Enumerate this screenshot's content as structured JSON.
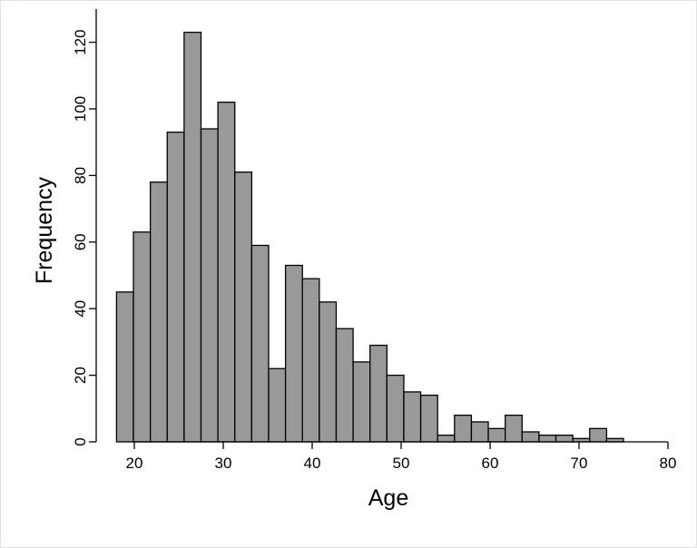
{
  "chart_data": {
    "type": "bar",
    "subtype": "histogram",
    "title": "",
    "xlabel": "Age",
    "ylabel": "Frequency",
    "xlim": [
      15,
      80
    ],
    "ylim": [
      0,
      130
    ],
    "x_ticks": [
      20,
      30,
      40,
      50,
      60,
      70,
      80
    ],
    "y_ticks": [
      0,
      20,
      40,
      60,
      80,
      100,
      120
    ],
    "grid": false,
    "legend": "none",
    "bar_color": "#999999",
    "bar_edge_color": "#000000",
    "bins": [
      {
        "x0": 18.0,
        "x1": 19.9,
        "count": 45
      },
      {
        "x0": 19.9,
        "x1": 21.8,
        "count": 63
      },
      {
        "x0": 21.8,
        "x1": 23.7,
        "count": 78
      },
      {
        "x0": 23.7,
        "x1": 25.6,
        "count": 93
      },
      {
        "x0": 25.6,
        "x1": 27.5,
        "count": 123
      },
      {
        "x0": 27.5,
        "x1": 29.4,
        "count": 94
      },
      {
        "x0": 29.4,
        "x1": 31.3,
        "count": 102
      },
      {
        "x0": 31.3,
        "x1": 33.2,
        "count": 81
      },
      {
        "x0": 33.2,
        "x1": 35.1,
        "count": 59
      },
      {
        "x0": 35.1,
        "x1": 37.0,
        "count": 22
      },
      {
        "x0": 37.0,
        "x1": 38.9,
        "count": 53
      },
      {
        "x0": 38.9,
        "x1": 40.8,
        "count": 49
      },
      {
        "x0": 40.8,
        "x1": 42.7,
        "count": 42
      },
      {
        "x0": 42.7,
        "x1": 44.6,
        "count": 34
      },
      {
        "x0": 44.6,
        "x1": 46.5,
        "count": 24
      },
      {
        "x0": 46.5,
        "x1": 48.4,
        "count": 29
      },
      {
        "x0": 48.4,
        "x1": 50.3,
        "count": 20
      },
      {
        "x0": 50.3,
        "x1": 52.2,
        "count": 15
      },
      {
        "x0": 52.2,
        "x1": 54.1,
        "count": 14
      },
      {
        "x0": 54.1,
        "x1": 56.0,
        "count": 2
      },
      {
        "x0": 56.0,
        "x1": 57.9,
        "count": 8
      },
      {
        "x0": 57.9,
        "x1": 59.8,
        "count": 6
      },
      {
        "x0": 59.8,
        "x1": 61.7,
        "count": 4
      },
      {
        "x0": 61.7,
        "x1": 63.6,
        "count": 8
      },
      {
        "x0": 63.6,
        "x1": 65.5,
        "count": 3
      },
      {
        "x0": 65.5,
        "x1": 67.4,
        "count": 2
      },
      {
        "x0": 67.4,
        "x1": 69.3,
        "count": 2
      },
      {
        "x0": 69.3,
        "x1": 71.2,
        "count": 1
      },
      {
        "x0": 71.2,
        "x1": 73.1,
        "count": 4
      },
      {
        "x0": 73.1,
        "x1": 75.0,
        "count": 1
      }
    ]
  }
}
